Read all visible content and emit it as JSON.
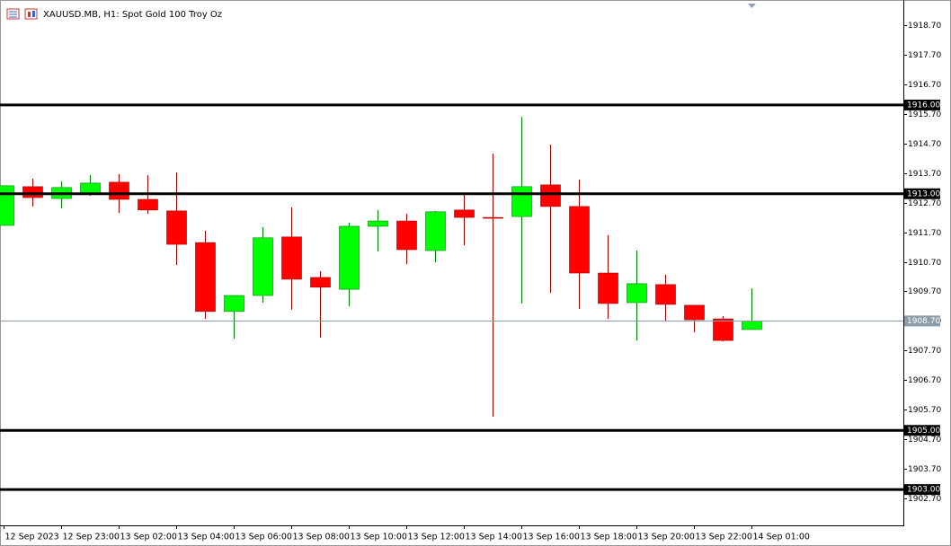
{
  "chart_data": {
    "type": "candlestick",
    "title": "XAUUSD.MB, H1:  Spot Gold 100 Troy Oz",
    "categories": [
      "12 Sep 2023",
      null,
      "12 Sep 23:00",
      null,
      "13 Sep 02:00",
      null,
      "13 Sep 04:00",
      null,
      "13 Sep 06:00",
      null,
      "13 Sep 08:00",
      null,
      "13 Sep 10:00",
      null,
      "13 Sep 12:00",
      null,
      "13 Sep 14:00",
      null,
      "13 Sep 16:00",
      null,
      "13 Sep 18:00",
      null,
      "13 Sep 20:00",
      null,
      "13 Sep 22:00",
      null,
      "14 Sep 01:00"
    ],
    "open": [
      1911.93,
      1913.24,
      1912.84,
      1912.99,
      1913.39,
      1912.81,
      1912.42,
      1911.35,
      1909.02,
      1909.56,
      1911.54,
      1910.17,
      1909.77,
      1911.9,
      1912.08,
      1911.08,
      1912.45,
      1912.2,
      1912.23,
      1913.3,
      1912.57,
      1910.32,
      1909.32,
      1909.93,
      1909.23,
      1908.77,
      1908.41
    ],
    "high": [
      1913.27,
      1913.51,
      1913.42,
      1913.63,
      1913.66,
      1913.63,
      1913.72,
      1911.75,
      1909.56,
      1911.87,
      1912.54,
      1910.38,
      1912.02,
      1912.45,
      1912.32,
      1912.42,
      1912.99,
      1914.36,
      1915.6,
      1914.66,
      1913.48,
      1911.6,
      1911.08,
      1910.26,
      1909.23,
      1908.86,
      1909.8
    ],
    "low": [
      1911.93,
      1912.57,
      1912.51,
      1912.93,
      1912.35,
      1912.32,
      1910.59,
      1908.77,
      1908.1,
      1909.32,
      1909.08,
      1908.14,
      1909.2,
      1911.05,
      1910.62,
      1910.69,
      1911.26,
      1905.46,
      1909.29,
      1909.65,
      1909.11,
      1908.77,
      1908.04,
      1908.71,
      1908.32,
      1908.01,
      1908.41
    ],
    "close": [
      1913.27,
      1912.87,
      1913.21,
      1913.36,
      1912.81,
      1912.45,
      1911.29,
      1909.02,
      1909.56,
      1911.51,
      1910.11,
      1909.84,
      1911.9,
      1912.08,
      1911.11,
      1912.39,
      1912.2,
      1912.17,
      1913.24,
      1912.57,
      1910.32,
      1909.29,
      1909.96,
      1909.26,
      1908.74,
      1908.04,
      1908.7
    ],
    "up_color": "#00ff00",
    "down_color": "#ff0000",
    "ylim": [
      1901.79,
      1919.55
    ],
    "yticks": [
      {
        "value": 1918.7,
        "label": "1918.70"
      },
      {
        "value": 1917.7,
        "label": "1917.70"
      },
      {
        "value": 1916.7,
        "label": "1916.70"
      },
      {
        "value": 1915.7,
        "label": "1915.70"
      },
      {
        "value": 1914.7,
        "label": "1914.70"
      },
      {
        "value": 1913.7,
        "label": "1913.70"
      },
      {
        "value": 1912.7,
        "label": "1912.70"
      },
      {
        "value": 1911.7,
        "label": "1911.70"
      },
      {
        "value": 1910.7,
        "label": "1910.70"
      },
      {
        "value": 1909.7,
        "label": "1909.70"
      },
      {
        "value": 1908.7,
        "label": "1908.70"
      },
      {
        "value": 1907.7,
        "label": "1907.70"
      },
      {
        "value": 1906.7,
        "label": "1906.70"
      },
      {
        "value": 1905.7,
        "label": "1905.70"
      },
      {
        "value": 1904.7,
        "label": "1904.70"
      },
      {
        "value": 1903.7,
        "label": "1903.70"
      },
      {
        "value": 1902.7,
        "label": "1902.70"
      }
    ],
    "hlines": [
      {
        "value": 1916,
        "label": "1916.00"
      },
      {
        "value": 1913,
        "label": "1913.00"
      },
      {
        "value": 1905,
        "label": "1905.00"
      },
      {
        "value": 1903,
        "label": "1903.00"
      }
    ],
    "price_line": {
      "value": 1908.7,
      "label": "1908.70"
    }
  }
}
